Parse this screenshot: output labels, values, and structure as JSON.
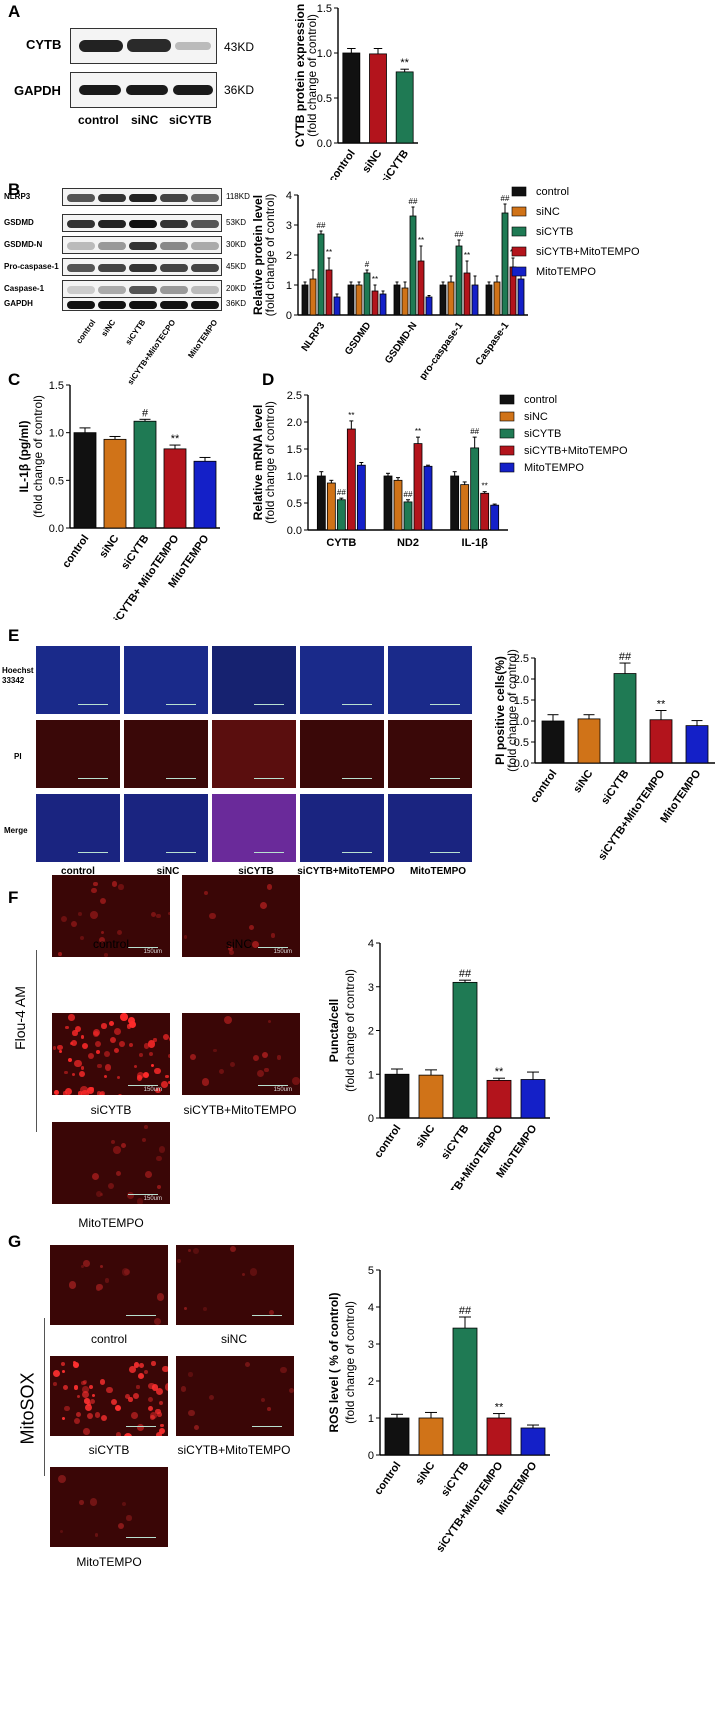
{
  "panel_letters": [
    "A",
    "B",
    "C",
    "D",
    "E",
    "F",
    "G"
  ],
  "colors": {
    "black": "#111111",
    "orange": "#d07318",
    "green": "#1f7a54",
    "red": "#b3141c",
    "blue": "#1420c8",
    "micro_blue": "#14207a",
    "micro_red": "#3a0606"
  },
  "groups5": [
    "control",
    "siNC",
    "siCYTB",
    "siCYTB+MitoTEMPO",
    "MitoTEMPO"
  ],
  "panel_a": {
    "blot_labels": [
      "CYTB",
      "GAPDH"
    ],
    "kd": [
      "43KD",
      "36KD"
    ],
    "lanes": [
      "control",
      "siNC",
      "siCYTB"
    ]
  },
  "panel_b": {
    "blot_labels": [
      "NLRP3",
      "GSDMD",
      "GSDMD-N",
      "Pro-caspase-1",
      "Caspase-1",
      "GAPDH"
    ],
    "kd": [
      "118KD",
      "53KD",
      "30KD",
      "45KD",
      "20KD",
      "36KD"
    ],
    "lanes": [
      "control",
      "siNC",
      "siCYTB",
      "siCYTB+MitoTECPO",
      "MitoTEMPO"
    ]
  },
  "panel_e_micro": {
    "row_labels": [
      "Hoechst 33342",
      "PI",
      "Merge"
    ],
    "col_labels": [
      "control",
      "siNC",
      "siCYTB",
      "siCYTB+MitoTEMPO",
      "MitoTEMPO"
    ]
  },
  "panel_f_micro": {
    "stain": "Flou-4 AM",
    "captions": [
      "control",
      "siNC",
      "siCYTB",
      "siCYTB+MitoTEMPO",
      "MitoTEMPO"
    ],
    "scale": "150um"
  },
  "panel_g_micro": {
    "stain": "MitoSOX",
    "captions": [
      "control",
      "siNC",
      "siCYTB",
      "siCYTB+MitoTEMPO",
      "MitoTEMPO"
    ]
  },
  "chart_data": [
    {
      "id": "A",
      "type": "bar",
      "categories": [
        "control",
        "siNC",
        "siCYTB"
      ],
      "values": [
        1.0,
        0.99,
        0.79
      ],
      "errors": [
        0.05,
        0.06,
        0.03
      ],
      "colors": [
        "#111111",
        "#b3141c",
        "#1f7a54"
      ],
      "annotations": [
        "",
        "",
        "**"
      ],
      "ylabel": "CYTB protein expression",
      "ylabel2": "(fold change of control)",
      "ylim": [
        0,
        1.5
      ],
      "yticks": [
        "0.0",
        "0.5",
        "1.0",
        "1.5"
      ]
    },
    {
      "id": "B",
      "type": "bar",
      "categories": [
        "NLRP3",
        "GSDMD",
        "GSDMD-N",
        "pro-caspase-1",
        "Caspase-1"
      ],
      "series": [
        {
          "name": "control",
          "values": [
            1.0,
            1.0,
            1.0,
            1.0,
            1.0
          ],
          "errors": [
            0.1,
            0.1,
            0.1,
            0.1,
            0.1
          ],
          "annot": [
            "",
            "",
            "",
            "",
            ""
          ]
        },
        {
          "name": "siNC",
          "values": [
            1.2,
            1.0,
            0.9,
            1.1,
            1.1
          ],
          "errors": [
            0.3,
            0.1,
            0.2,
            0.2,
            0.2
          ],
          "annot": [
            "",
            "",
            "",
            "",
            ""
          ]
        },
        {
          "name": "siCYTB",
          "values": [
            2.7,
            1.4,
            3.3,
            2.3,
            3.4
          ],
          "errors": [
            0.1,
            0.1,
            0.3,
            0.2,
            0.3
          ],
          "annot": [
            "##",
            "#",
            "##",
            "##",
            "##"
          ]
        },
        {
          "name": "siCYTB+MitoTEMPO",
          "values": [
            1.5,
            0.8,
            1.8,
            1.4,
            1.6
          ],
          "errors": [
            0.4,
            0.2,
            0.5,
            0.4,
            0.3
          ],
          "annot": [
            "**",
            "**",
            "**",
            "**",
            "**"
          ]
        },
        {
          "name": "MitoTEMPO",
          "values": [
            0.6,
            0.7,
            0.6,
            1.0,
            1.2
          ],
          "errors": [
            0.1,
            0.1,
            0.05,
            0.3,
            0.3
          ],
          "annot": [
            "",
            "",
            "",
            "",
            ""
          ]
        }
      ],
      "ylabel": "Relative protein level",
      "ylabel2": "(fold change of control)",
      "ylim": [
        0,
        4
      ],
      "yticks": [
        "0",
        "1",
        "2",
        "3",
        "4"
      ],
      "legend": "right"
    },
    {
      "id": "C",
      "type": "bar",
      "categories": [
        "control",
        "siNC",
        "siCYTB",
        "siCYTB+ MitoTEMPO",
        "MitoTEMPO"
      ],
      "values": [
        1.0,
        0.93,
        1.12,
        0.83,
        0.7
      ],
      "errors": [
        0.05,
        0.03,
        0.02,
        0.04,
        0.04
      ],
      "annotations": [
        "",
        "",
        "#",
        "**",
        ""
      ],
      "ylabel": "IL-1β (pg/ml)",
      "ylabel2": "(fold change of control)",
      "ylim": [
        0,
        1.5
      ],
      "yticks": [
        "0.0",
        "0.5",
        "1.0",
        "1.5"
      ]
    },
    {
      "id": "D",
      "type": "bar",
      "categories": [
        "CYTB",
        "ND2",
        "IL-1β"
      ],
      "series": [
        {
          "name": "control",
          "values": [
            1.0,
            1.0,
            1.0
          ],
          "errors": [
            0.08,
            0.05,
            0.08
          ],
          "annot": [
            "",
            "",
            ""
          ]
        },
        {
          "name": "siNC",
          "values": [
            0.87,
            0.92,
            0.84
          ],
          "errors": [
            0.05,
            0.05,
            0.05
          ],
          "annot": [
            "",
            "",
            ""
          ]
        },
        {
          "name": "siCYTB",
          "values": [
            0.56,
            0.52,
            1.52
          ],
          "errors": [
            0.03,
            0.04,
            0.2
          ],
          "annot": [
            "##",
            "##",
            "##"
          ]
        },
        {
          "name": "siCYTB+MitoTEMPO",
          "values": [
            1.87,
            1.6,
            0.68
          ],
          "errors": [
            0.15,
            0.12,
            0.03
          ],
          "annot": [
            "**",
            "**",
            "**"
          ]
        },
        {
          "name": "MitoTEMPO",
          "values": [
            1.2,
            1.18,
            0.46
          ],
          "errors": [
            0.05,
            0.02,
            0.02
          ],
          "annot": [
            "",
            "",
            ""
          ]
        }
      ],
      "ylabel": "Relative mRNA level",
      "ylabel2": "(fold change of control)",
      "ylim": [
        0,
        2.5
      ],
      "yticks": [
        "0.0",
        "0.5",
        "1.0",
        "1.5",
        "2.0",
        "2.5"
      ],
      "legend": "right"
    },
    {
      "id": "E",
      "type": "bar",
      "categories": [
        "control",
        "siNC",
        "siCYTB",
        "siCYTB+MitoTEMPO",
        "MitoTEMPO"
      ],
      "values": [
        1.0,
        1.05,
        2.13,
        1.03,
        0.89
      ],
      "errors": [
        0.15,
        0.1,
        0.25,
        0.22,
        0.12
      ],
      "annotations": [
        "",
        "",
        "##",
        "**",
        ""
      ],
      "ylabel": "PI positive cells(%)",
      "ylabel2": "(fold change of control)",
      "ylim": [
        0,
        2.5
      ],
      "yticks": [
        "0.0",
        "0.5",
        "1.0",
        "1.5",
        "2.0",
        "2.5"
      ]
    },
    {
      "id": "F",
      "type": "bar",
      "categories": [
        "control",
        "siNC",
        "siCYTB",
        "siCYTB+MitoTEMPO",
        "MitoTEMPO"
      ],
      "values": [
        1.0,
        0.98,
        3.1,
        0.86,
        0.88
      ],
      "errors": [
        0.12,
        0.12,
        0.05,
        0.05,
        0.17
      ],
      "annotations": [
        "",
        "",
        "##",
        "**",
        ""
      ],
      "ylabel": "Puncta/cell",
      "ylabel2": "(fold change of control)",
      "ylim": [
        0,
        4
      ],
      "yticks": [
        "0",
        "1",
        "2",
        "3",
        "4"
      ]
    },
    {
      "id": "G",
      "type": "bar",
      "categories": [
        "control",
        "siNC",
        "siCYTB",
        "siCYTB+MitoTEMPO",
        "MitoTEMPO"
      ],
      "values": [
        1.0,
        1.0,
        3.43,
        1.0,
        0.73
      ],
      "errors": [
        0.1,
        0.15,
        0.3,
        0.12,
        0.08
      ],
      "annotations": [
        "",
        "",
        "##",
        "**",
        ""
      ],
      "ylabel": "ROS level  ( % of control)",
      "ylabel2": "(fold change of control)",
      "ylim": [
        0,
        5
      ],
      "yticks": [
        "0",
        "1",
        "2",
        "3",
        "4",
        "5"
      ]
    }
  ]
}
